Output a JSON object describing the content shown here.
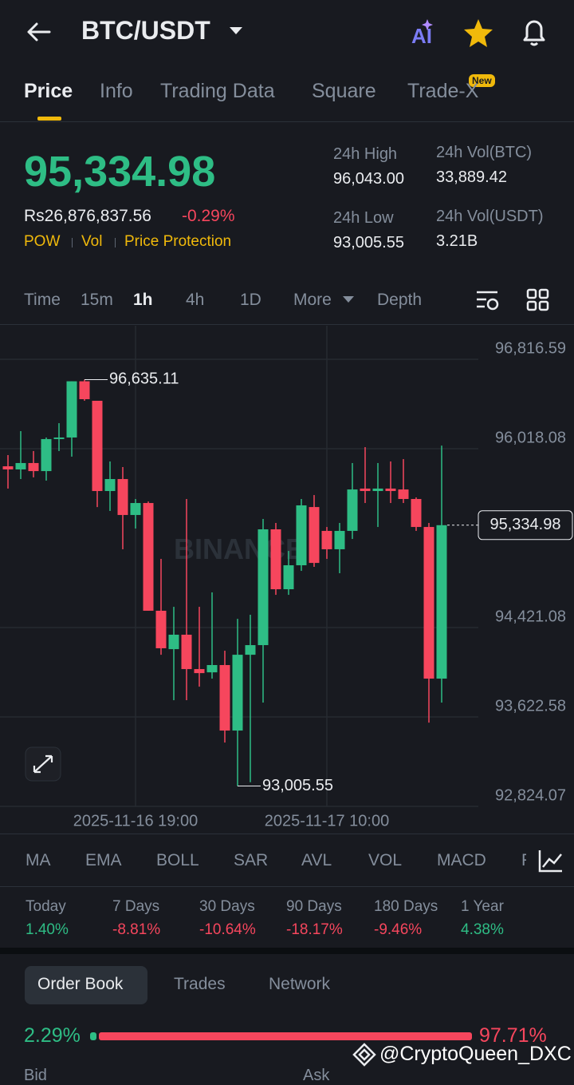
{
  "header": {
    "title": "BTC/USDT"
  },
  "tabs": [
    "Price",
    "Info",
    "Trading Data",
    "Square",
    "Trade-X"
  ],
  "new_badge": "New",
  "price": {
    "last": "95,334.98",
    "fiat": "Rs26,876,837.56",
    "change": "-0.29%",
    "tags": [
      "POW",
      "Vol",
      "Price Protection"
    ]
  },
  "stats": [
    {
      "label": "24h High",
      "value": "96,043.00"
    },
    {
      "label": "24h Vol(BTC)",
      "value": "33,889.42"
    },
    {
      "label": "24h Low",
      "value": "93,005.55"
    },
    {
      "label": "24h Vol(USDT)",
      "value": "3.21B"
    }
  ],
  "intervals": [
    "Time",
    "15m",
    "1h",
    "4h",
    "1D",
    "More",
    "Depth"
  ],
  "chart_data": {
    "type": "candlestick",
    "watermark": "BINANCE",
    "categories": [
      null,
      null,
      null,
      null,
      null,
      null,
      null,
      null,
      null,
      null,
      "2025-11-16 19:00",
      null,
      null,
      null,
      null,
      null,
      null,
      null,
      null,
      null,
      null,
      null,
      null,
      null,
      null,
      "2025-11-17 10:00",
      null,
      null,
      null,
      null,
      null,
      null,
      null,
      null,
      null
    ],
    "open": [
      95861,
      95833,
      95890,
      95818,
      96104,
      96118,
      96620,
      96446,
      95640,
      95747,
      95426,
      95533,
      94571,
      94228,
      94357,
      94050,
      94021,
      94086,
      93501,
      94178,
      94264,
      95298,
      94763,
      94977,
      95497,
      95284,
      95120,
      95284,
      95662,
      95640,
      95662,
      95654,
      95569,
      95319,
      93965
    ],
    "close": [
      95833,
      95890,
      95818,
      96104,
      96118,
      96620,
      96460,
      95640,
      95747,
      95426,
      95533,
      94571,
      94236,
      94357,
      94050,
      94014,
      94086,
      93501,
      94178,
      94264,
      95298,
      94763,
      94977,
      95512,
      94998,
      95120,
      95284,
      95654,
      95640,
      95662,
      95640,
      95569,
      95319,
      93965,
      95334.98
    ],
    "high": [
      95961,
      96175,
      95997,
      96118,
      96246,
      96620,
      96635.11,
      96446,
      95904,
      95854,
      95569,
      95547,
      95034,
      94606,
      95569,
      94606,
      94735,
      94214,
      94499,
      94535,
      95391,
      95355,
      95105,
      95569,
      95604,
      95319,
      95355,
      95890,
      96032,
      95890,
      95904,
      95925,
      95583,
      95355,
      96046
    ],
    "low": [
      95662,
      95747,
      95762,
      95733,
      95997,
      95947,
      96446,
      95497,
      95462,
      95120,
      95305,
      94571,
      94178,
      93772,
      93772,
      93893,
      93965,
      93394,
      93005.55,
      93040,
      93751,
      94713,
      94713,
      94927,
      94963,
      95034,
      94906,
      95212,
      95533,
      95319,
      95533,
      95533,
      95284,
      93572,
      93751
    ],
    "up_color": "#2ebd85",
    "down_color": "#f6465d",
    "ylim": [
      92824.07,
      97116
    ],
    "yticks": [
      {
        "value": 96816.59,
        "label": "96,816.59"
      },
      {
        "value": 96018.08,
        "label": "96,018.08"
      },
      {
        "value": 94421.08,
        "label": "94,421.08"
      },
      {
        "value": 93622.58,
        "label": "93,622.58"
      },
      {
        "value": 92824.07,
        "label": "92,824.07"
      }
    ],
    "annotations": [
      {
        "value": 96635.11,
        "label": "96,635.11"
      },
      {
        "value": 93005.55,
        "label": "93,005.55"
      }
    ],
    "current_price": {
      "value": 95334.98,
      "label": "95,334.98"
    },
    "grid": true
  },
  "indicators": [
    "MA",
    "EMA",
    "BOLL",
    "SAR",
    "AVL",
    "VOL",
    "MACD",
    "RSI"
  ],
  "performance": [
    {
      "period": "Today",
      "change": "1.40%"
    },
    {
      "period": "7 Days",
      "change": "-8.81%"
    },
    {
      "period": "30 Days",
      "change": "-10.64%"
    },
    {
      "period": "90 Days",
      "change": "-18.17%"
    },
    {
      "period": "180 Days",
      "change": "-9.46%"
    },
    {
      "period": "1 Year",
      "change": "4.38%"
    }
  ],
  "orderbook": {
    "tabs": [
      "Order Book",
      "Trades",
      "Network"
    ],
    "bid_ratio": "2.29%",
    "ask_ratio": "97.71%",
    "columns": [
      "Bid",
      "Ask"
    ]
  },
  "watermark": "@CryptoQueen_DXC"
}
